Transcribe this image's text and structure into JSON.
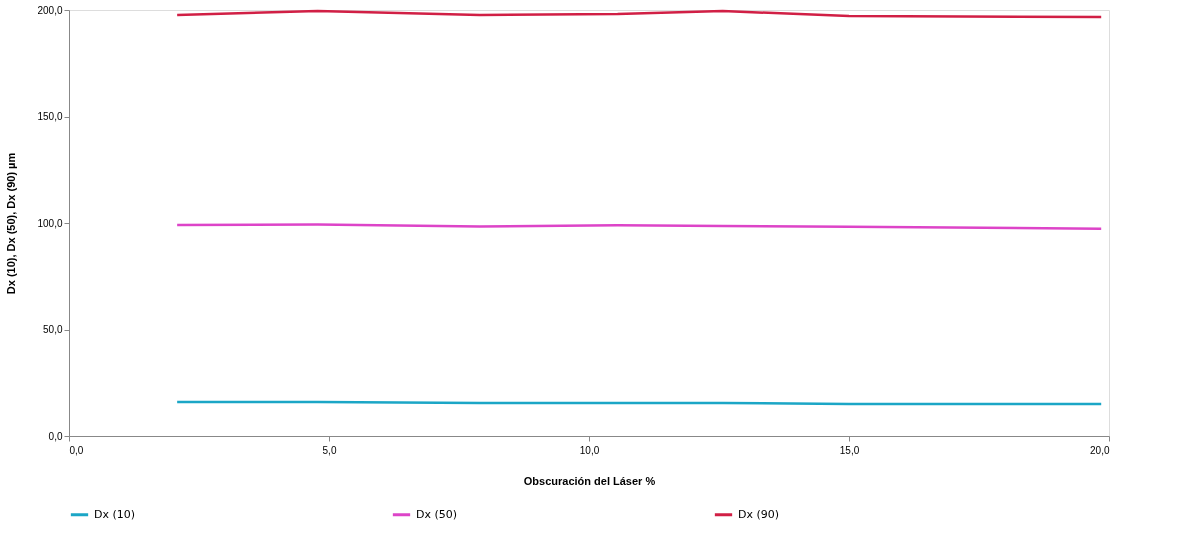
{
  "chart_data": {
    "type": "line",
    "xlabel": "Obscuración del Láser %",
    "ylabel": "Dx (10), Dx (50), Dx (90) µm",
    "x": [
      2.08,
      4.78,
      7.9,
      10.55,
      12.57,
      15.0,
      19.85
    ],
    "series": [
      {
        "name": "Dx (10)",
        "color": "#1ba6c6",
        "values": [
          16.0,
          16.0,
          15.5,
          15.5,
          15.5,
          15.0,
          15.0
        ]
      },
      {
        "name": "Dx (50)",
        "color": "#dd44c8",
        "values": [
          99.1,
          99.3,
          98.3,
          99.0,
          98.6,
          98.2,
          97.3
        ]
      },
      {
        "name": "Dx (90)",
        "color": "#d11f45",
        "values": [
          197.7,
          199.5,
          197.7,
          198.1,
          199.5,
          197.2,
          196.7
        ]
      }
    ],
    "xlim": [
      0,
      20
    ],
    "ylim": [
      0,
      200
    ],
    "xticks": [
      {
        "value": 0,
        "label": "0,0"
      },
      {
        "value": 5,
        "label": "5,0"
      },
      {
        "value": 10,
        "label": "10,0"
      },
      {
        "value": 15,
        "label": "15,0"
      },
      {
        "value": 20,
        "label": "20,0"
      }
    ],
    "yticks": [
      {
        "value": 0,
        "label": "0,0"
      },
      {
        "value": 50,
        "label": "50,0"
      },
      {
        "value": 100,
        "label": "100,0"
      },
      {
        "value": 150,
        "label": "150,0"
      },
      {
        "value": 200,
        "label": "200,0"
      }
    ],
    "grid": false,
    "legend": "bottom",
    "marker": "none",
    "line_style": "solid"
  }
}
